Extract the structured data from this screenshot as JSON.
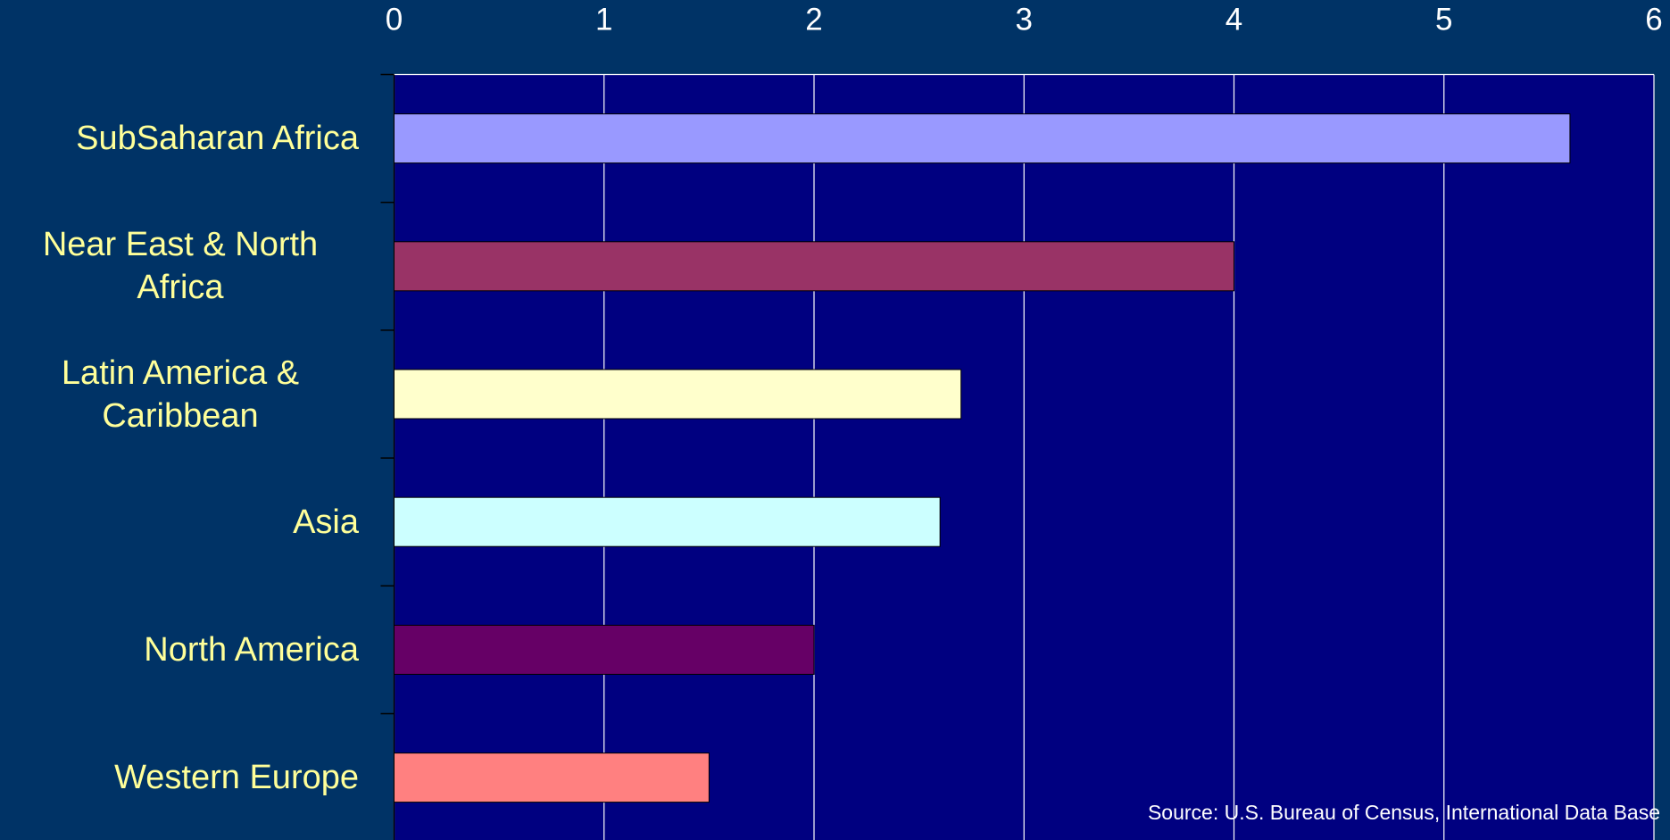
{
  "chart_data": {
    "type": "bar",
    "orientation": "horizontal",
    "categories": [
      "SubSaharan Africa",
      "Near East & North Africa",
      "Latin America & Caribbean",
      "Asia",
      "North America",
      "Western Europe"
    ],
    "values": [
      5.6,
      4.0,
      2.7,
      2.6,
      2.0,
      1.5
    ],
    "colors": [
      "#9999ff",
      "#993366",
      "#ffffcc",
      "#ccffff",
      "#660066",
      "#ff8080"
    ],
    "xlim": [
      0,
      6
    ],
    "xticks": [
      0,
      1,
      2,
      3,
      4,
      5,
      6
    ],
    "grid": true,
    "source": "Source: U.S. Bureau of Census, International Data Base"
  }
}
